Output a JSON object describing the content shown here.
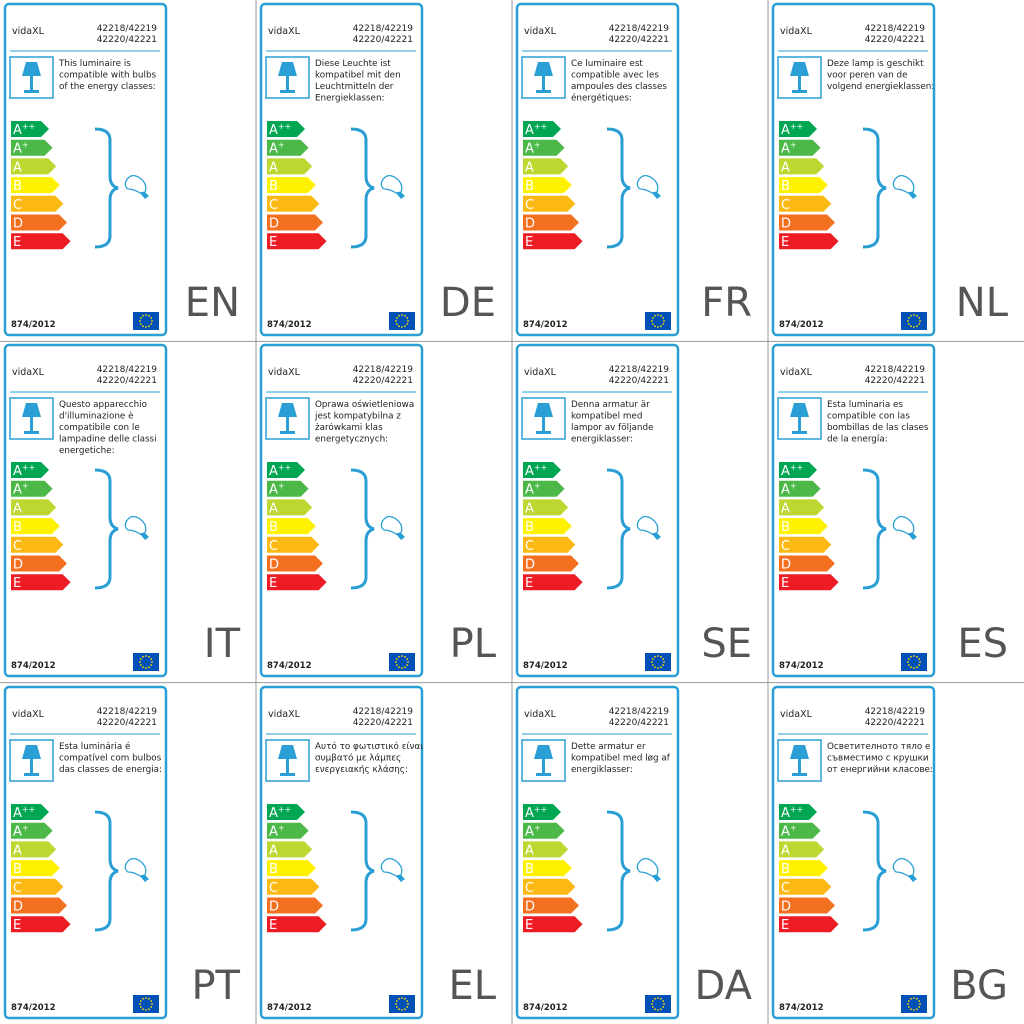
{
  "brand": "vidaXL",
  "codes": [
    "42218/42219",
    "42220/42221"
  ],
  "regulation": "874/2012",
  "classes": [
    {
      "letter": "A",
      "sup": "++"
    },
    {
      "letter": "A",
      "sup": "+"
    },
    {
      "letter": "A"
    },
    {
      "letter": "B"
    },
    {
      "letter": "C"
    },
    {
      "letter": "D"
    },
    {
      "letter": "E"
    }
  ],
  "cells": [
    {
      "lang": "EN",
      "description": [
        "This luminaire is",
        "compatible with bulbs",
        "of the energy classes:"
      ]
    },
    {
      "lang": "DE",
      "description": [
        "Diese Leuchte ist",
        "kompatibel mit den",
        "Leuchtmitteln der",
        "Energieklassen:"
      ]
    },
    {
      "lang": "FR",
      "description": [
        "Ce luminaire est",
        "compatible avec les",
        "ampoules des classes",
        "énergétiques:"
      ]
    },
    {
      "lang": "NL",
      "description": [
        "Deze lamp is geschikt",
        "voor peren van de",
        "volgend energieklassen:"
      ]
    },
    {
      "lang": "IT",
      "description": [
        "Questo apparecchio",
        "d'illuminazione è",
        "compatibile con le",
        "lampadine delle classi",
        "energetiche:"
      ]
    },
    {
      "lang": "PL",
      "description": [
        "Oprawa oświetleniowa",
        "jest kompatybilna z",
        "żarówkami klas",
        "energetycznych:"
      ]
    },
    {
      "lang": "SE",
      "description": [
        "Denna armatur är",
        "kompatibel med",
        "lampor av följande",
        "energiklasser:"
      ]
    },
    {
      "lang": "ES",
      "description": [
        "Esta luminaria es",
        "compatible con las",
        "bombillas de las clases",
        "de la energía:"
      ]
    },
    {
      "lang": "PT",
      "description": [
        "Esta luminária é",
        "compatível com bulbos",
        "das classes de energia:"
      ]
    },
    {
      "lang": "EL",
      "description": [
        "Αυτό το φωτιστικό είναι",
        "συμβατό με λάμπες",
        "ενεργειακής κλάσης:"
      ]
    },
    {
      "lang": "DA",
      "description": [
        "Dette armatur er",
        "kompatibel med løg af",
        "energiklasser:"
      ]
    },
    {
      "lang": "BG",
      "description": [
        "Осветителното тяло е",
        "съвместимо с крушки",
        "от енергийни класове:"
      ]
    }
  ]
}
